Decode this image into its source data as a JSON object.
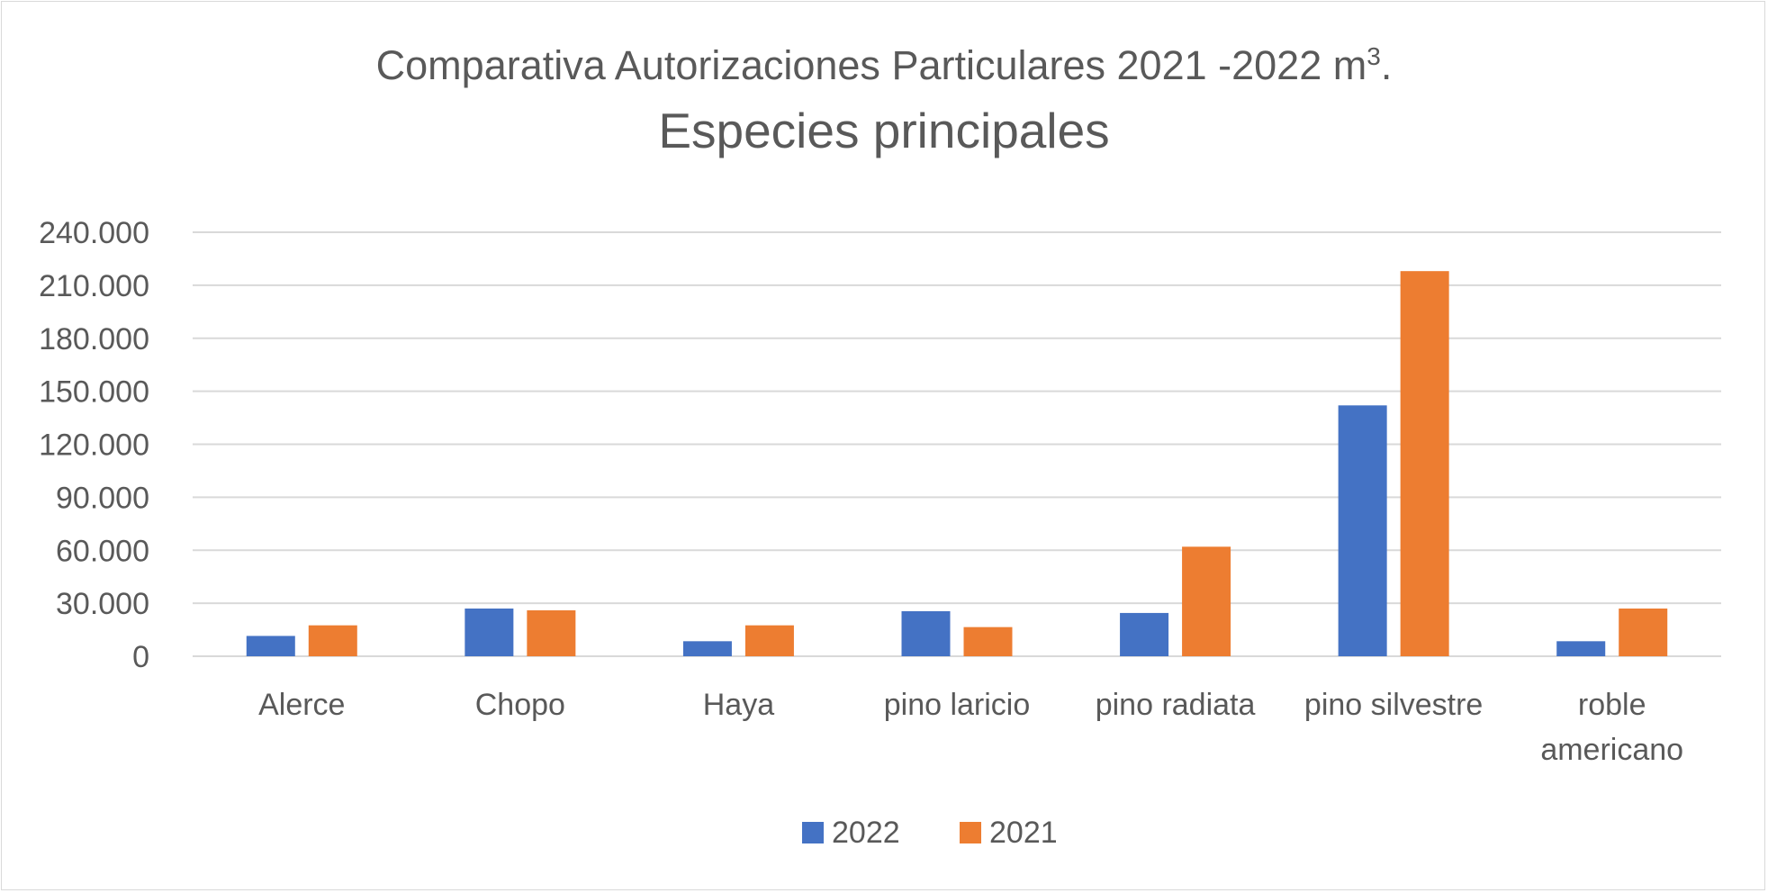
{
  "chart_data": {
    "type": "bar",
    "title_line1": "Comparativa Autorizaciones Particulares 2021 -2022 m",
    "title_superscript": "3",
    "title_suffix": ".",
    "title_line2": "Especies principales",
    "categories": [
      [
        "Alerce"
      ],
      [
        "Chopo"
      ],
      [
        "Haya"
      ],
      [
        "pino laricio"
      ],
      [
        "pino radiata"
      ],
      [
        "pino silvestre"
      ],
      [
        "roble",
        "americano"
      ]
    ],
    "series": [
      {
        "name": "2022",
        "color": "#4472c4",
        "values": [
          11500,
          27000,
          8500,
          25500,
          24500,
          142000,
          8500
        ]
      },
      {
        "name": "2021",
        "color": "#ed7d31",
        "values": [
          17500,
          26000,
          17500,
          16500,
          62000,
          218000,
          27000
        ]
      }
    ],
    "yticks": [
      "0",
      "30.000",
      "60.000",
      "90.000",
      "120.000",
      "150.000",
      "180.000",
      "210.000",
      "240.000"
    ],
    "ylim": [
      0,
      240000
    ],
    "grid": true,
    "legend": "bottom"
  }
}
